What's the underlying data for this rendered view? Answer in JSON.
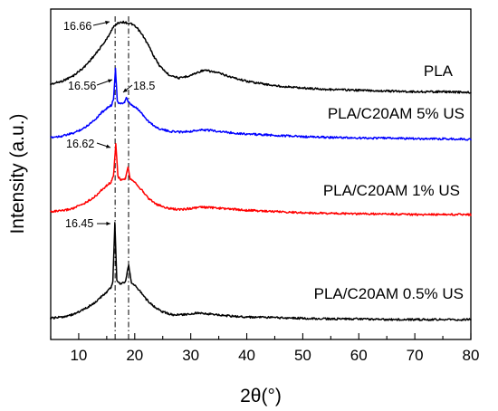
{
  "chart_data": {
    "type": "line",
    "xlabel": "2θ(°)",
    "ylabel": "Intensity (a.u.)",
    "xlim": [
      5,
      80
    ],
    "xticks": [
      10,
      20,
      30,
      40,
      50,
      60,
      70,
      80
    ],
    "xtick_labels": [
      "10",
      "20",
      "30",
      "40",
      "50",
      "60",
      "70",
      "80"
    ],
    "yticks_shown": false,
    "grid": false,
    "reference_lines_x": [
      16.5,
      18.9
    ],
    "series": [
      {
        "name": "PLA",
        "color": "#000000",
        "x": [
          5,
          7,
          9,
          11,
          13,
          15,
          16,
          16.7,
          17.5,
          18.5,
          19.5,
          20.5,
          21.5,
          22.5,
          23.5,
          24.5,
          26,
          28,
          30,
          32,
          33,
          35,
          37,
          40,
          45,
          50,
          55,
          60,
          65,
          70,
          75,
          80
        ],
        "y": [
          0.12,
          0.16,
          0.23,
          0.35,
          0.52,
          0.72,
          0.86,
          0.92,
          0.95,
          0.94,
          0.92,
          0.86,
          0.76,
          0.63,
          0.48,
          0.36,
          0.25,
          0.2,
          0.24,
          0.3,
          0.3,
          0.27,
          0.22,
          0.16,
          0.1,
          0.07,
          0.05,
          0.04,
          0.03,
          0.02,
          0.02,
          0.01
        ]
      },
      {
        "name": "PLA/C20AM 5% US",
        "color": "#0000ff",
        "x": [
          5,
          7,
          9,
          11,
          13,
          14,
          15,
          15.8,
          16.2,
          16.56,
          16.9,
          17.5,
          18.2,
          18.5,
          18.8,
          19.5,
          20.5,
          21.5,
          22.5,
          24,
          26,
          28,
          30,
          32,
          34,
          37,
          40,
          45,
          50,
          55,
          60,
          65,
          70,
          75,
          80
        ],
        "y": [
          0.03,
          0.05,
          0.09,
          0.17,
          0.3,
          0.39,
          0.46,
          0.5,
          0.58,
          1.05,
          0.55,
          0.52,
          0.55,
          0.62,
          0.55,
          0.5,
          0.45,
          0.36,
          0.26,
          0.17,
          0.12,
          0.11,
          0.12,
          0.14,
          0.13,
          0.1,
          0.08,
          0.06,
          0.04,
          0.03,
          0.02,
          0.02,
          0.01,
          0.01,
          0.0
        ]
      },
      {
        "name": "PLA/C20AM 1% US",
        "color": "#ff0000",
        "x": [
          5,
          7,
          9,
          11,
          13,
          14,
          15,
          15.8,
          16.2,
          16.62,
          17.0,
          17.5,
          18.3,
          18.8,
          19.2,
          19.8,
          20.5,
          21.5,
          22.5,
          24,
          26,
          28,
          30,
          32,
          34,
          37,
          40,
          45,
          50,
          55,
          60,
          65,
          70,
          75,
          80
        ],
        "y": [
          0.05,
          0.06,
          0.1,
          0.18,
          0.3,
          0.39,
          0.47,
          0.53,
          0.62,
          1.15,
          0.62,
          0.56,
          0.58,
          0.78,
          0.58,
          0.55,
          0.48,
          0.37,
          0.26,
          0.16,
          0.1,
          0.08,
          0.1,
          0.12,
          0.11,
          0.09,
          0.07,
          0.05,
          0.03,
          0.02,
          0.01,
          0.01,
          0.0,
          0.0,
          0.0
        ]
      },
      {
        "name": "PLA/C20AM 0.5% US",
        "color": "#000000",
        "x": [
          5,
          7,
          9,
          11,
          13,
          14,
          15,
          15.8,
          16.1,
          16.45,
          16.8,
          17.5,
          18.4,
          18.9,
          19.4,
          20,
          21,
          22,
          23.5,
          25,
          27,
          29,
          31,
          33,
          35,
          38,
          40,
          45,
          50,
          55,
          60,
          65,
          70,
          75,
          80
        ],
        "y": [
          0.02,
          0.04,
          0.08,
          0.16,
          0.27,
          0.35,
          0.43,
          0.5,
          0.6,
          1.5,
          0.62,
          0.55,
          0.6,
          0.85,
          0.58,
          0.53,
          0.44,
          0.32,
          0.2,
          0.12,
          0.07,
          0.08,
          0.1,
          0.09,
          0.07,
          0.05,
          0.04,
          0.03,
          0.02,
          0.01,
          0.01,
          0.0,
          0.0,
          0.0,
          0.0
        ]
      }
    ],
    "annotations": [
      {
        "text": "16.66",
        "x": 16.66,
        "series": "PLA"
      },
      {
        "text": "16.56",
        "x": 16.56,
        "series": "PLA/C20AM 5% US"
      },
      {
        "text": "18.5",
        "x": 18.5,
        "series": "PLA/C20AM 5% US"
      },
      {
        "text": "16.62",
        "x": 16.62,
        "series": "PLA/C20AM 1% US"
      },
      {
        "text": "16.45",
        "x": 16.45,
        "series": "PLA/C20AM 0.5% US"
      }
    ]
  }
}
